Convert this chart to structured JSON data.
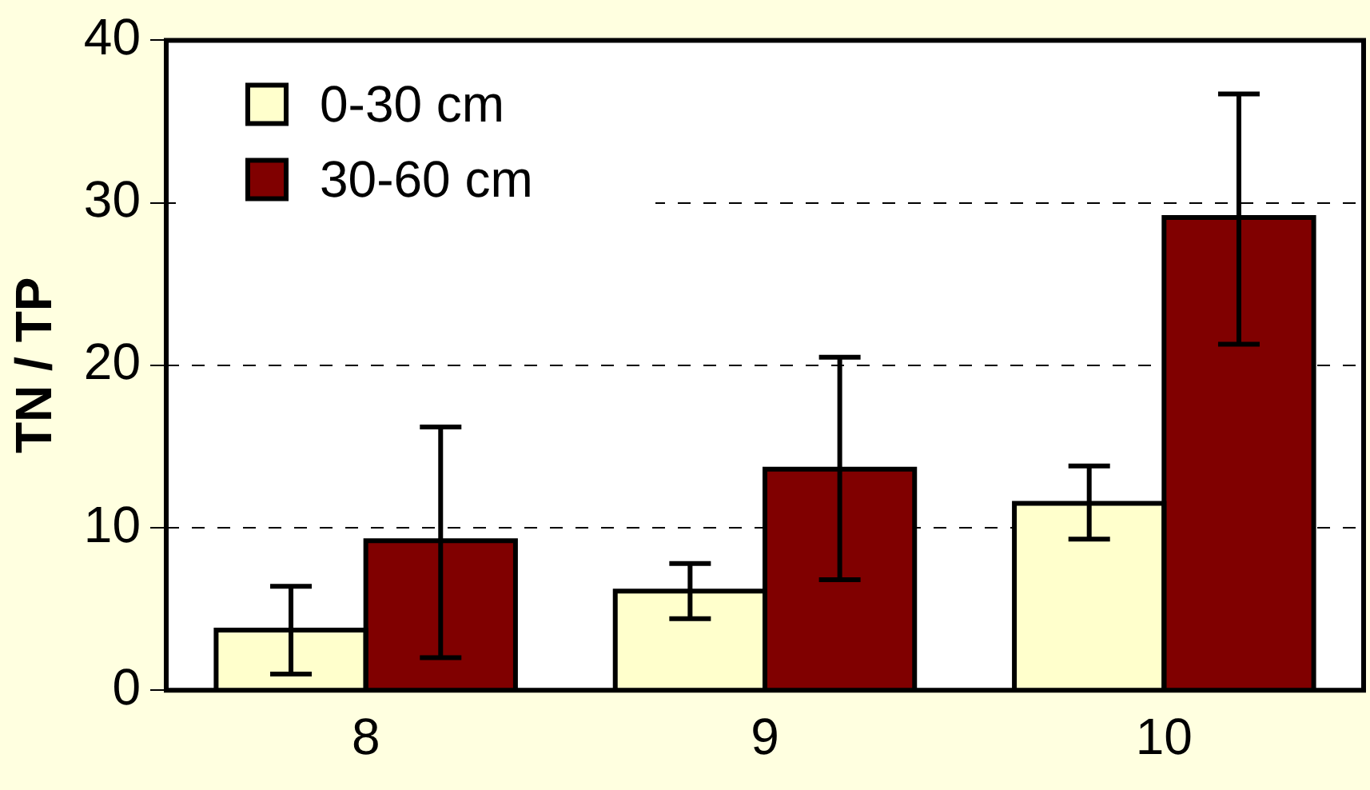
{
  "chart_data": {
    "type": "bar",
    "ylabel": "TN / TP",
    "categories": [
      "8",
      "9",
      "10"
    ],
    "series": [
      {
        "name": "0-30 cm",
        "color": "#ffffcc",
        "values": [
          3.7,
          6.1,
          11.5
        ],
        "errors": [
          [
            1.0,
            6.4
          ],
          [
            4.4,
            7.8
          ],
          [
            9.3,
            13.8
          ]
        ]
      },
      {
        "name": "30-60 cm",
        "color": "#800000",
        "values": [
          9.2,
          13.6,
          29.1
        ],
        "errors": [
          [
            2.0,
            16.2
          ],
          [
            6.8,
            20.5
          ],
          [
            21.3,
            36.7
          ]
        ]
      }
    ],
    "ylim": [
      0,
      40
    ],
    "yticks": [
      0,
      10,
      20,
      30,
      40
    ],
    "grid": "y",
    "legend": "top left"
  }
}
